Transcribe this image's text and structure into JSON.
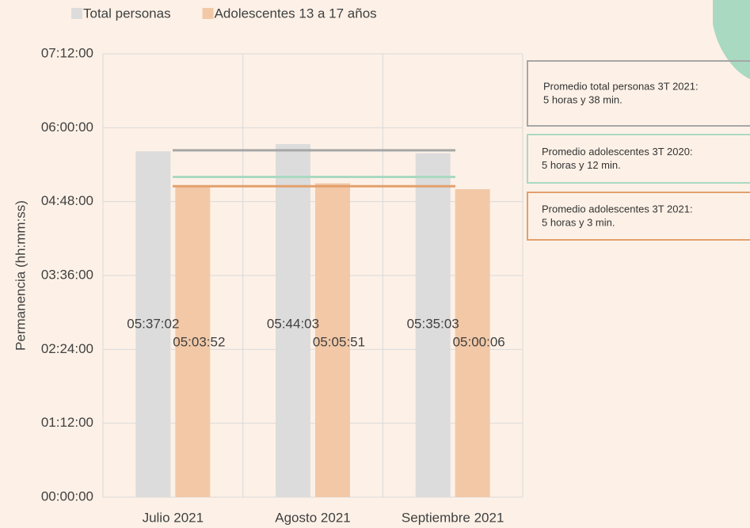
{
  "chart_data": {
    "type": "bar",
    "ylabel": "Permanencia (hh:mm:ss)",
    "categories": [
      "Julio 2021",
      "Agosto 2021",
      "Septiembre 2021"
    ],
    "series": [
      {
        "name": "Total personas",
        "color": "#dcdcdc",
        "values": [
          20222,
          20643,
          20103
        ],
        "value_labels": [
          "05:37:02",
          "05:44:03",
          "05:35:03"
        ]
      },
      {
        "name": "Adolescentes 13 a 17 años",
        "color": "#f2c8a6",
        "values": [
          18232,
          18351,
          18006
        ],
        "value_labels": [
          "05:03:52",
          "05:05:51",
          "05:00:06"
        ]
      }
    ],
    "ylim": [
      0,
      25920
    ],
    "yticks": [
      {
        "value": 0,
        "label": "00:00:00"
      },
      {
        "value": 4320,
        "label": "01:12:00"
      },
      {
        "value": 8640,
        "label": "02:24:00"
      },
      {
        "value": 12960,
        "label": "03:36:00"
      },
      {
        "value": 17280,
        "label": "04:48:00"
      },
      {
        "value": 21600,
        "label": "06:00:00"
      },
      {
        "value": 25920,
        "label": "07:12:00"
      }
    ],
    "grid": true,
    "reference_lines": [
      {
        "value": 20280,
        "color": "#a6a6a6",
        "text": [
          "Promedio total personas 3T 2021:",
          "5 horas y 38 min."
        ]
      },
      {
        "value": 18720,
        "color": "#a9d9c1",
        "text": [
          "Promedio adolescentes 3T 2020:",
          "5 horas y 12 min."
        ]
      },
      {
        "value": 18180,
        "color": "#e3a06c",
        "text": [
          "Promedio adolescentes 3T 2021:",
          "5 horas y 3 min."
        ]
      }
    ]
  }
}
